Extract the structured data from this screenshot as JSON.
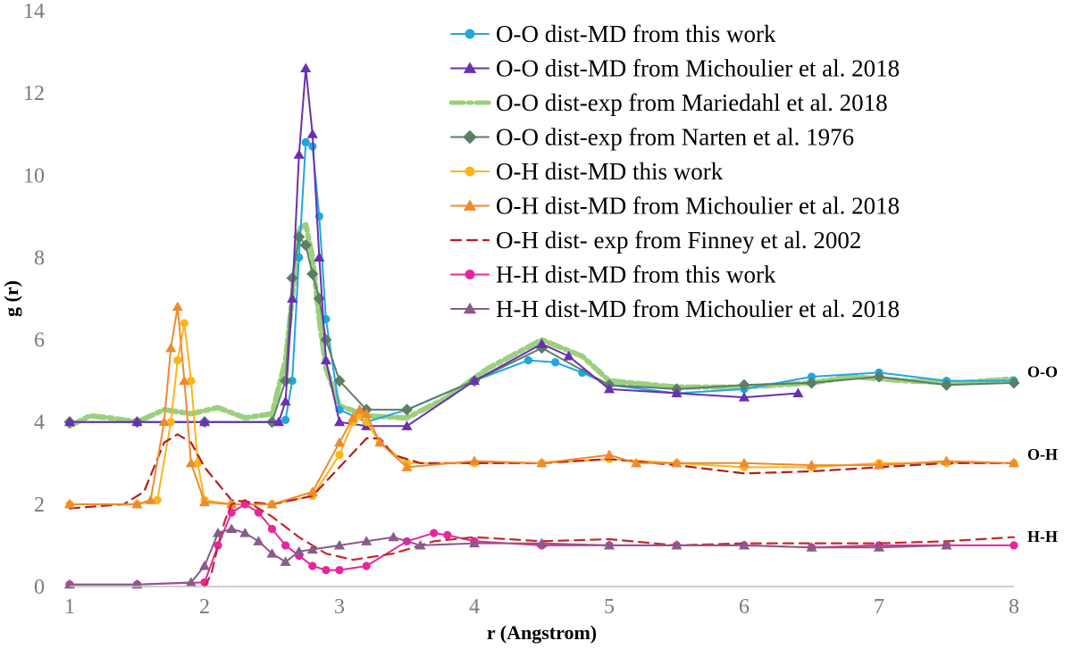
{
  "chart_data": {
    "type": "line",
    "title": "",
    "xlabel": "r (Angstrom)",
    "ylabel": "g (r)",
    "xlim": [
      1,
      8
    ],
    "ylim": [
      0,
      14
    ],
    "xticks": [
      1,
      2,
      3,
      4,
      5,
      6,
      7,
      8
    ],
    "yticks": [
      0,
      2,
      4,
      6,
      8,
      10,
      12,
      14
    ],
    "grid": false,
    "legend_position": "top-right",
    "group_labels": [
      {
        "text": "O-O",
        "y": 5
      },
      {
        "text": "O-H",
        "y": 3
      },
      {
        "text": "H-H",
        "y": 1
      }
    ],
    "series": [
      {
        "name": "O-O dist-MD from this work",
        "color": "#1ea7e1",
        "marker": "circle",
        "dash": "solid",
        "width": 2,
        "x": [
          1.0,
          1.5,
          2.0,
          2.5,
          2.6,
          2.65,
          2.7,
          2.75,
          2.8,
          2.85,
          2.9,
          3.0,
          3.2,
          3.5,
          4.0,
          4.4,
          4.6,
          4.8,
          5.0,
          5.5,
          6.0,
          6.5,
          7.0,
          7.5,
          8.0
        ],
        "y": [
          4.0,
          4.0,
          4.0,
          4.0,
          4.05,
          5.0,
          8.0,
          10.8,
          10.7,
          9.0,
          6.5,
          4.3,
          4.0,
          4.3,
          5.0,
          5.5,
          5.45,
          5.2,
          4.9,
          4.7,
          4.8,
          5.1,
          5.2,
          5.0,
          5.0
        ]
      },
      {
        "name": "O-O dist-MD from Michoulier et al. 2018",
        "color": "#6a2fb3",
        "marker": "triangle",
        "dash": "solid",
        "width": 2,
        "x": [
          1.0,
          1.5,
          2.0,
          2.55,
          2.6,
          2.65,
          2.7,
          2.75,
          2.8,
          2.85,
          2.9,
          3.0,
          3.2,
          3.5,
          4.0,
          4.5,
          4.7,
          5.0,
          5.5,
          6.0,
          6.4
        ],
        "y": [
          4.0,
          4.0,
          4.0,
          4.0,
          4.5,
          7.0,
          10.5,
          12.6,
          11.0,
          8.0,
          5.5,
          4.0,
          3.9,
          3.9,
          5.0,
          5.9,
          5.6,
          4.8,
          4.7,
          4.6,
          4.7
        ]
      },
      {
        "name": "O-O dist-exp from Mariedahl et al. 2018",
        "color": "#9ccf7e",
        "marker": "none",
        "dash": "dashdot",
        "width": 6,
        "x": [
          1.0,
          1.15,
          1.3,
          1.5,
          1.7,
          1.9,
          2.1,
          2.3,
          2.5,
          2.6,
          2.65,
          2.7,
          2.75,
          2.8,
          2.85,
          2.9,
          3.0,
          3.2,
          3.5,
          3.8,
          4.1,
          4.5,
          4.8,
          5.0,
          5.5,
          6.0,
          6.5,
          6.8,
          7.2,
          7.6,
          8.0
        ],
        "y": [
          3.9,
          4.15,
          4.1,
          4.0,
          4.3,
          4.2,
          4.35,
          4.1,
          4.2,
          5.5,
          7.0,
          8.7,
          8.8,
          8.0,
          6.5,
          5.3,
          4.4,
          4.15,
          4.1,
          4.6,
          5.3,
          6.0,
          5.6,
          5.0,
          4.85,
          4.85,
          4.95,
          5.1,
          5.0,
          4.95,
          5.05
        ]
      },
      {
        "name": "O-O dist-exp from Narten et al. 1976",
        "color": "#5b7f63",
        "marker": "diamond",
        "dash": "solid",
        "width": 2,
        "x": [
          1.0,
          1.5,
          2.0,
          2.5,
          2.6,
          2.65,
          2.7,
          2.75,
          2.8,
          2.85,
          2.9,
          3.0,
          3.2,
          3.5,
          4.0,
          4.5,
          5.0,
          5.5,
          6.0,
          6.5,
          7.0,
          7.5,
          8.0
        ],
        "y": [
          4.0,
          4.0,
          4.0,
          4.0,
          5.0,
          7.5,
          8.5,
          8.3,
          7.6,
          7.0,
          6.0,
          5.0,
          4.3,
          4.3,
          5.0,
          5.8,
          4.9,
          4.8,
          4.9,
          4.95,
          5.1,
          4.9,
          4.95
        ]
      },
      {
        "name": "O-H dist-MD this work",
        "color": "#fbb515",
        "marker": "circle",
        "dash": "solid",
        "width": 2,
        "x": [
          1.0,
          1.5,
          1.65,
          1.75,
          1.8,
          1.85,
          1.9,
          1.95,
          2.0,
          2.2,
          2.5,
          2.8,
          3.0,
          3.1,
          3.15,
          3.2,
          3.3,
          3.5,
          4.0,
          4.5,
          5.0,
          5.5,
          6.0,
          6.5,
          7.0,
          7.5,
          8.0
        ],
        "y": [
          2.0,
          2.0,
          2.1,
          4.0,
          5.5,
          6.4,
          5.0,
          3.0,
          2.1,
          2.0,
          2.0,
          2.2,
          3.2,
          4.0,
          4.15,
          4.0,
          3.5,
          3.0,
          3.0,
          3.0,
          3.1,
          3.0,
          2.9,
          2.9,
          3.0,
          3.0,
          3.0
        ]
      },
      {
        "name": "O-H dist-MD from Michoulier et al. 2018",
        "color": "#f08a2e",
        "marker": "triangle",
        "dash": "solid",
        "width": 2,
        "x": [
          1.0,
          1.5,
          1.6,
          1.7,
          1.75,
          1.8,
          1.85,
          1.9,
          2.0,
          2.2,
          2.5,
          2.8,
          3.0,
          3.1,
          3.15,
          3.2,
          3.3,
          3.5,
          4.0,
          4.5,
          5.0,
          5.2,
          5.5,
          6.0,
          6.5,
          7.0,
          7.5,
          8.0
        ],
        "y": [
          2.0,
          2.0,
          2.1,
          4.0,
          5.8,
          6.8,
          5.0,
          3.0,
          2.05,
          2.0,
          2.0,
          2.3,
          3.5,
          4.1,
          4.3,
          4.2,
          3.5,
          2.9,
          3.05,
          3.0,
          3.2,
          3.0,
          3.0,
          3.0,
          2.95,
          2.95,
          3.05,
          3.0
        ]
      },
      {
        "name": "O-H dist- exp from Finney et al. 2002",
        "color": "#b71c1c",
        "marker": "none",
        "dash": "dash",
        "width": 2.2,
        "x": [
          1.0,
          1.4,
          1.55,
          1.7,
          1.8,
          1.9,
          2.0,
          2.2,
          2.5,
          2.8,
          3.0,
          3.2,
          3.3,
          3.4,
          3.6,
          4.0,
          4.5,
          5.0,
          5.5,
          6.0,
          6.5,
          7.0,
          7.5,
          8.0
        ],
        "y": [
          1.9,
          2.0,
          2.3,
          3.5,
          3.7,
          3.5,
          2.9,
          2.1,
          2.0,
          2.2,
          2.9,
          3.6,
          3.6,
          3.2,
          3.0,
          3.0,
          3.0,
          3.1,
          2.95,
          2.75,
          2.8,
          2.9,
          3.0,
          3.0
        ]
      },
      {
        "name": "H-H dist-MD from this work",
        "color": "#e8259f",
        "marker": "circle",
        "dash": "solid",
        "width": 2,
        "x": [
          1.0,
          1.5,
          2.0,
          2.1,
          2.2,
          2.3,
          2.4,
          2.5,
          2.6,
          2.7,
          2.8,
          2.9,
          3.0,
          3.2,
          3.5,
          3.7,
          3.8,
          4.0,
          4.5,
          5.0,
          5.5,
          6.0,
          6.5,
          7.0,
          7.5,
          8.0
        ],
        "y": [
          0.05,
          0.05,
          0.1,
          1.0,
          1.8,
          2.0,
          1.8,
          1.4,
          1.0,
          0.75,
          0.5,
          0.4,
          0.4,
          0.5,
          1.1,
          1.3,
          1.25,
          1.1,
          1.0,
          1.0,
          1.0,
          1.0,
          0.95,
          1.0,
          1.0,
          1.0
        ]
      },
      {
        "name": "H-H dist-MD from Michoulier et al. 2018",
        "color": "#8a5a8a",
        "marker": "triangle",
        "dash": "solid",
        "width": 2,
        "x": [
          1.0,
          1.5,
          1.9,
          2.0,
          2.1,
          2.2,
          2.3,
          2.4,
          2.5,
          2.6,
          2.7,
          2.8,
          3.0,
          3.2,
          3.4,
          3.6,
          4.0,
          4.5,
          5.0,
          5.5,
          6.0,
          6.5,
          7.0,
          7.5
        ],
        "y": [
          0.05,
          0.05,
          0.1,
          0.5,
          1.3,
          1.4,
          1.3,
          1.1,
          0.8,
          0.6,
          0.85,
          0.9,
          1.0,
          1.1,
          1.2,
          1.0,
          1.05,
          1.05,
          1.0,
          1.0,
          1.0,
          0.95,
          0.95,
          1.0
        ]
      },
      {
        "name": "H-H dist-exp",
        "legend": false,
        "color": "#c62828",
        "marker": "none",
        "dash": "dash",
        "width": 2.2,
        "x": [
          2.0,
          2.05,
          2.1,
          2.15,
          2.2,
          2.3,
          2.5,
          2.7,
          2.9,
          3.1,
          3.4,
          3.7,
          4.0,
          4.5,
          5.0,
          5.5,
          6.0,
          6.5,
          7.0,
          7.5,
          8.0
        ],
        "y": [
          0.0,
          0.3,
          1.0,
          1.6,
          2.0,
          2.1,
          1.7,
          1.2,
          0.8,
          0.65,
          0.8,
          1.1,
          1.2,
          1.1,
          1.15,
          1.0,
          1.05,
          1.05,
          1.05,
          1.1,
          1.2
        ]
      }
    ]
  }
}
